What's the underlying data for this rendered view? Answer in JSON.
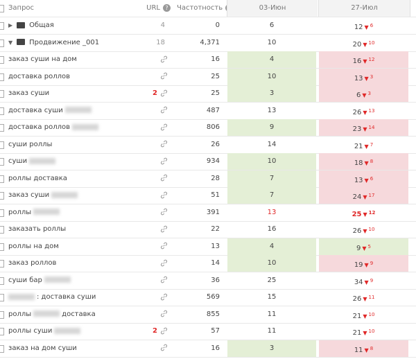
{
  "header": {
    "query": "Запрос",
    "url": "URL",
    "frequency": "Частотность",
    "date1": "03-Июн",
    "date2": "27-Июл"
  },
  "rows": [
    {
      "kind": "folder",
      "expanded": false,
      "query": "Общая",
      "url_count": "4",
      "frequency": "0",
      "date1": "6",
      "date2": "12",
      "date2_change": "6"
    },
    {
      "kind": "folder",
      "expanded": true,
      "query": "Продвижение _001",
      "url_count": "18",
      "frequency": "4,371",
      "date1": "10",
      "date2": "20",
      "date2_change": "10"
    },
    {
      "query": "заказ суши на дом",
      "frequency": "16",
      "date1": "4",
      "date1_bg": "#e4efd6",
      "date2": "16",
      "date2_change": "12",
      "date2_bg": "#f6d9dc"
    },
    {
      "query": "доставка роллов",
      "frequency": "25",
      "date1": "10",
      "date1_bg": "#e4efd6",
      "date2": "13",
      "date2_change": "3",
      "date2_bg": "#f6d9dc"
    },
    {
      "query": "заказ суши",
      "url_count": "2",
      "frequency": "25",
      "date1": "3",
      "date1_bg": "#e4efd6",
      "date2": "6",
      "date2_change": "3",
      "date2_bg": "#f6d9dc"
    },
    {
      "query": "доставка суши",
      "masked": true,
      "frequency": "487",
      "date1": "13",
      "date2": "26",
      "date2_change": "13"
    },
    {
      "query": "доставка роллов",
      "masked": true,
      "frequency": "806",
      "date1": "9",
      "date1_bg": "#e4efd6",
      "date2": "23",
      "date2_change": "14",
      "date2_bg": "#f6d9dc"
    },
    {
      "query": "суши роллы",
      "frequency": "26",
      "date1": "14",
      "date2": "21",
      "date2_change": "7"
    },
    {
      "query": "суши",
      "masked": true,
      "frequency": "934",
      "date1": "10",
      "date1_bg": "#e4efd6",
      "date2": "18",
      "date2_change": "8",
      "date2_bg": "#f6d9dc"
    },
    {
      "query": "роллы доставка",
      "frequency": "28",
      "date1": "7",
      "date1_bg": "#e4efd6",
      "date2": "13",
      "date2_change": "6",
      "date2_bg": "#f6d9dc"
    },
    {
      "query": "заказ суши",
      "masked": true,
      "frequency": "51",
      "date1": "7",
      "date1_bg": "#e4efd6",
      "date2": "24",
      "date2_change": "17",
      "date2_bg": "#f6d9dc"
    },
    {
      "query": "роллы",
      "masked": true,
      "frequency": "391",
      "date1": "13",
      "date1_color": "#e02828",
      "date2": "25",
      "date2_color": "#e02828",
      "date2_change": "12"
    },
    {
      "query": "заказать роллы",
      "frequency": "22",
      "date1": "16",
      "date2": "26",
      "date2_change": "10"
    },
    {
      "query": "роллы на дом",
      "frequency": "13",
      "date1": "4",
      "date1_bg": "#e4efd6",
      "date2": "9",
      "date2_change": "5",
      "date2_bg": "#e4efd6"
    },
    {
      "query": "заказ роллов",
      "frequency": "14",
      "date1": "10",
      "date1_bg": "#e4efd6",
      "date2": "19",
      "date2_change": "9",
      "date2_bg": "#f6d9dc"
    },
    {
      "query": "суши бар",
      "masked": true,
      "frequency": "36",
      "date1": "25",
      "date2": "34",
      "date2_change": "9"
    },
    {
      "masked": true,
      "query_tail": ": доставка суши",
      "frequency": "569",
      "date1": "15",
      "date2": "26",
      "date2_change": "11"
    },
    {
      "query": "роллы",
      "masked": true,
      "query_tail": "доставка",
      "frequency": "855",
      "date1": "11",
      "date2": "21",
      "date2_change": "10"
    },
    {
      "query": "роллы суши",
      "masked": true,
      "url_count": "2",
      "frequency": "57",
      "date1": "11",
      "date2": "21",
      "date2_change": "10"
    },
    {
      "query": "заказ на дом суши",
      "frequency": "16",
      "date1": "3",
      "date1_bg": "#e4efd6",
      "date2": "11",
      "date2_change": "8",
      "date2_bg": "#f6d9dc"
    }
  ]
}
